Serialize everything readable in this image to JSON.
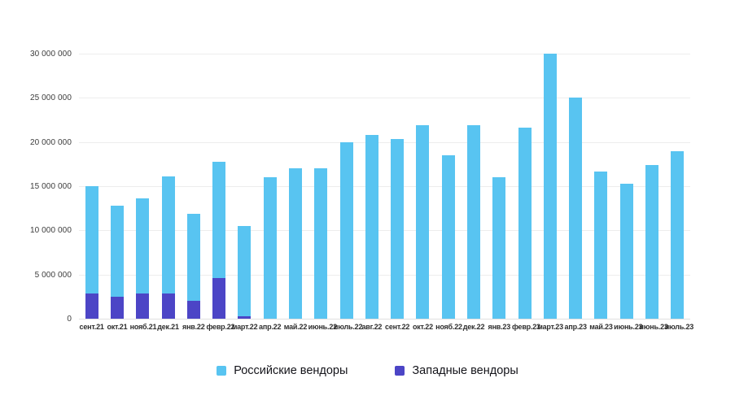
{
  "chart_data": {
    "type": "bar",
    "stacked": true,
    "title": "",
    "categories": [
      "сент.21",
      "окт.21",
      "нояб.21",
      "дек.21",
      "янв.22",
      "февр.22",
      "март.22",
      "апр.22",
      "май.22",
      "июнь.22",
      "июль.22",
      "авг.22",
      "сент.22",
      "окт.22",
      "нояб.22",
      "дек.22",
      "янв.23",
      "февр.23",
      "март.23",
      "апр.23",
      "май.23",
      "июнь.23",
      "июнь.23",
      "июль.23"
    ],
    "series": [
      {
        "name": "Западные вендоры",
        "color": "#4C45C6",
        "stack_position": "bottom",
        "values": [
          2900000,
          2500000,
          2900000,
          2900000,
          2000000,
          4600000,
          300000,
          0,
          0,
          0,
          0,
          0,
          0,
          0,
          0,
          0,
          0,
          0,
          0,
          0,
          0,
          0,
          0,
          0
        ]
      },
      {
        "name": "Российские вендоры",
        "color": "#58C4F1",
        "stack_position": "top",
        "values": [
          12100000,
          10300000,
          10700000,
          13200000,
          9900000,
          13200000,
          10200000,
          16000000,
          17000000,
          17000000,
          20000000,
          20800000,
          20300000,
          21900000,
          18500000,
          21900000,
          16000000,
          21600000,
          30000000,
          25000000,
          16700000,
          15300000,
          17400000,
          19000000
        ]
      }
    ],
    "totals": [
      15000000,
      12800000,
      13600000,
      16100000,
      11900000,
      17800000,
      10500000,
      16000000,
      17000000,
      17000000,
      20000000,
      20800000,
      20300000,
      21900000,
      18500000,
      21900000,
      16000000,
      21600000,
      30000000,
      25000000,
      16700000,
      15300000,
      17400000,
      19000000
    ],
    "xlabel": "",
    "ylabel": "",
    "ylim": [
      0,
      30000000
    ],
    "ytick_values": [
      0,
      5000000,
      10000000,
      15000000,
      20000000,
      25000000,
      30000000
    ],
    "ytick_labels": [
      "0",
      "5 000 000",
      "10 000 000",
      "15 000 000",
      "20 000 000",
      "25 000 000",
      "30 000 000"
    ],
    "grid": "horizontal",
    "legend_position": "bottom-center"
  },
  "legend": {
    "items": [
      {
        "label": "Российские вендоры",
        "color": "#58C4F1"
      },
      {
        "label": "Западные вендоры",
        "color": "#4C45C6"
      }
    ]
  },
  "colors": {
    "background": "#ffffff",
    "gridline": "#ededed",
    "baseline": "#e0e0e0",
    "axis_text": "#3c3c3c",
    "legend_text": "#14141a"
  }
}
